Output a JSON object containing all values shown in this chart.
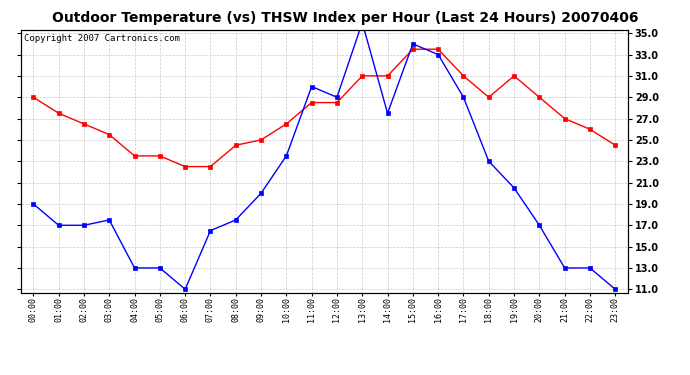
{
  "title": "Outdoor Temperature (vs) THSW Index per Hour (Last 24 Hours) 20070406",
  "copyright": "Copyright 2007 Cartronics.com",
  "hours": [
    "00:00",
    "01:00",
    "02:00",
    "03:00",
    "04:00",
    "05:00",
    "06:00",
    "07:00",
    "08:00",
    "09:00",
    "10:00",
    "11:00",
    "12:00",
    "13:00",
    "14:00",
    "15:00",
    "16:00",
    "17:00",
    "18:00",
    "19:00",
    "20:00",
    "21:00",
    "22:00",
    "23:00"
  ],
  "temp": [
    19.0,
    17.0,
    17.0,
    17.5,
    13.0,
    13.0,
    11.0,
    16.5,
    17.5,
    20.0,
    23.5,
    30.0,
    29.0,
    36.0,
    27.5,
    34.0,
    33.0,
    29.0,
    23.0,
    20.5,
    17.0,
    13.0,
    13.0,
    11.0
  ],
  "thsw": [
    29.0,
    27.5,
    26.5,
    25.5,
    23.5,
    23.5,
    22.5,
    22.5,
    24.5,
    25.0,
    26.5,
    28.5,
    28.5,
    31.0,
    31.0,
    33.5,
    33.5,
    31.0,
    29.0,
    31.0,
    29.0,
    27.0,
    26.0,
    24.5
  ],
  "temp_color": "#0000ff",
  "thsw_color": "#ff0000",
  "ylim_min": 11.0,
  "ylim_max": 35.0,
  "yticks": [
    11.0,
    13.0,
    15.0,
    17.0,
    19.0,
    21.0,
    23.0,
    25.0,
    27.0,
    29.0,
    31.0,
    33.0,
    35.0
  ],
  "bg_color": "#ffffff",
  "plot_bg_color": "#ffffff",
  "grid_color": "#bbbbbb",
  "title_fontsize": 10,
  "copyright_fontsize": 6.5,
  "marker": "s",
  "marker_size": 2.5,
  "line_width": 1.0
}
